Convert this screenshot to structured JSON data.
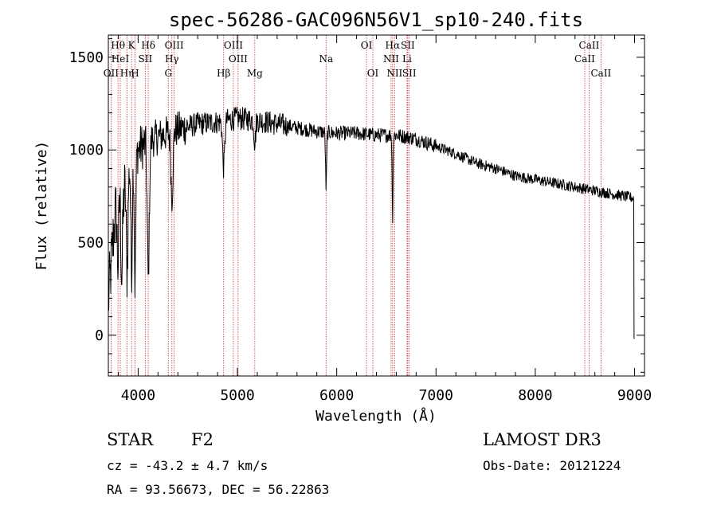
{
  "chart_data": {
    "type": "line",
    "title": "spec-56286-GAC096N56V1_sp10-240.fits",
    "xlabel": "Wavelength (Å)",
    "ylabel": "Flux (relative)",
    "xlim": [
      3700,
      9100
    ],
    "ylim": [
      -220,
      1620
    ],
    "x_ticks": [
      4000,
      5000,
      6000,
      7000,
      8000,
      9000
    ],
    "x_tick_labels": [
      "4000",
      "5000",
      "6000",
      "7000",
      "8000",
      "9000"
    ],
    "y_ticks": [
      0,
      500,
      1000,
      1500
    ],
    "y_tick_labels": [
      "0",
      "500",
      "1000",
      "1500"
    ],
    "grid": false,
    "continuum": [
      [
        3700,
        180
      ],
      [
        3760,
        600
      ],
      [
        3800,
        800
      ],
      [
        3850,
        750
      ],
      [
        3900,
        880
      ],
      [
        3950,
        950
      ],
      [
        4000,
        1000
      ],
      [
        4100,
        1050
      ],
      [
        4200,
        1070
      ],
      [
        4400,
        1110
      ],
      [
        4600,
        1140
      ],
      [
        4800,
        1150
      ],
      [
        5000,
        1170
      ],
      [
        5200,
        1160
      ],
      [
        5400,
        1140
      ],
      [
        5600,
        1120
      ],
      [
        5800,
        1100
      ],
      [
        6000,
        1090
      ],
      [
        6200,
        1090
      ],
      [
        6400,
        1080
      ],
      [
        6600,
        1080
      ],
      [
        6800,
        1060
      ],
      [
        7000,
        1020
      ],
      [
        7200,
        980
      ],
      [
        7400,
        930
      ],
      [
        7600,
        900
      ],
      [
        7800,
        860
      ],
      [
        8000,
        840
      ],
      [
        8200,
        820
      ],
      [
        8400,
        800
      ],
      [
        8600,
        780
      ],
      [
        8800,
        760
      ],
      [
        8990,
        740
      ]
    ],
    "absorption_features": [
      {
        "x": 3797,
        "depth": 400,
        "width": 12
      },
      {
        "x": 3835,
        "depth": 450,
        "width": 12
      },
      {
        "x": 3889,
        "depth": 500,
        "width": 12
      },
      {
        "x": 3934,
        "depth": 600,
        "width": 10
      },
      {
        "x": 3969,
        "depth": 700,
        "width": 10
      },
      {
        "x": 4102,
        "depth": 750,
        "width": 15
      },
      {
        "x": 4340,
        "depth": 350,
        "width": 15
      },
      {
        "x": 4861,
        "depth": 250,
        "width": 15
      },
      {
        "x": 5175,
        "depth": 120,
        "width": 12
      },
      {
        "x": 5893,
        "depth": 300,
        "width": 8
      },
      {
        "x": 6563,
        "depth": 450,
        "width": 6
      }
    ],
    "line_markers": [
      {
        "x": 3797,
        "label": "Hθ",
        "row": 0
      },
      {
        "x": 3820,
        "label": "HeI",
        "row": 1
      },
      {
        "x": 3727,
        "label": "OII",
        "row": 2
      },
      {
        "x": 3889,
        "label": "Hη",
        "row": 2
      },
      {
        "x": 3934,
        "label": "K",
        "row": 0
      },
      {
        "x": 3969,
        "label": "H",
        "row": 2
      },
      {
        "x": 4072,
        "label": "SII",
        "row": 1
      },
      {
        "x": 4102,
        "label": "Hδ",
        "row": 0
      },
      {
        "x": 4340,
        "label": "Hγ",
        "row": 1
      },
      {
        "x": 4363,
        "label": "OIII",
        "row": 0
      },
      {
        "x": 4304,
        "label": "G",
        "row": 2
      },
      {
        "x": 4861,
        "label": "Hβ",
        "row": 2
      },
      {
        "x": 4959,
        "label": "OIII",
        "row": 0
      },
      {
        "x": 5007,
        "label": "OIII",
        "row": 1
      },
      {
        "x": 5175,
        "label": "Mg",
        "row": 2
      },
      {
        "x": 5893,
        "label": "Na",
        "row": 1
      },
      {
        "x": 6300,
        "label": "OI",
        "row": 0
      },
      {
        "x": 6364,
        "label": "OI",
        "row": 2
      },
      {
        "x": 6548,
        "label": "NII",
        "row": 1
      },
      {
        "x": 6563,
        "label": "Hα",
        "row": 0
      },
      {
        "x": 6583,
        "label": "NII",
        "row": 2
      },
      {
        "x": 6708,
        "label": "Li",
        "row": 1
      },
      {
        "x": 6716,
        "label": "SII",
        "row": 0
      },
      {
        "x": 6731,
        "label": "SII",
        "row": 2
      },
      {
        "x": 8498,
        "label": "CaII",
        "row": 1
      },
      {
        "x": 8542,
        "label": "CaII",
        "row": 0
      },
      {
        "x": 8662,
        "label": "CaII",
        "row": 2
      }
    ]
  },
  "info": {
    "object_class": "STAR",
    "subclass": "F2",
    "cz": "cz = -43.2 ± 4.7 km/s",
    "coords": "RA =  93.56673, DEC =  56.22863",
    "survey": "LAMOST DR3",
    "obs_date": "Obs-Date: 20121224"
  },
  "colors": {
    "marker_line": "#cc3333",
    "spectrum": "#000000",
    "axis": "#000000"
  }
}
